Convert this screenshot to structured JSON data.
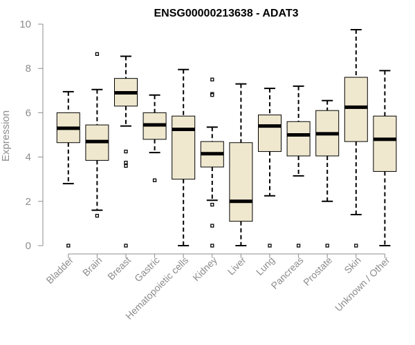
{
  "chart_data": {
    "type": "boxplot",
    "title": "ENSG00000213638 - ADAT3",
    "xlabel": "",
    "ylabel": "Expression",
    "ylim": [
      0,
      10
    ],
    "yticks": [
      0,
      2,
      4,
      6,
      8,
      10
    ],
    "categories": [
      "Bladder",
      "Brain",
      "Breast",
      "Gastric",
      "Hematopoietic cells",
      "Kidney",
      "Liver",
      "Lung",
      "Pancreas",
      "Prostate",
      "Skin",
      "Unknown / Other"
    ],
    "box_color": "#efe8cf",
    "boxes": [
      {
        "category": "Bladder",
        "min": 2.8,
        "q1": 4.65,
        "median": 5.3,
        "q3": 6.0,
        "max": 6.95,
        "outliers": [
          0
        ]
      },
      {
        "category": "Brain",
        "min": 1.6,
        "q1": 3.85,
        "median": 4.7,
        "q3": 5.45,
        "max": 7.05,
        "outliers": [
          8.65,
          1.35
        ]
      },
      {
        "category": "Breast",
        "min": 5.4,
        "q1": 6.3,
        "median": 6.9,
        "q3": 7.55,
        "max": 8.55,
        "outliers": [
          4.25,
          3.75,
          3.6,
          0
        ]
      },
      {
        "category": "Gastric",
        "min": 4.2,
        "q1": 4.8,
        "median": 5.45,
        "q3": 6.0,
        "max": 6.8,
        "outliers": [
          2.95
        ]
      },
      {
        "category": "Hematopoietic cells",
        "min": 0,
        "q1": 3.0,
        "median": 5.25,
        "q3": 5.85,
        "max": 7.95,
        "outliers": []
      },
      {
        "category": "Kidney",
        "min": 2.05,
        "q1": 3.55,
        "median": 4.15,
        "q3": 4.7,
        "max": 5.35,
        "outliers": [
          7.5,
          6.85,
          6.8,
          1.85,
          0.9,
          0
        ]
      },
      {
        "category": "Liver",
        "min": 0,
        "q1": 1.1,
        "median": 2.0,
        "q3": 4.65,
        "max": 7.3,
        "outliers": []
      },
      {
        "category": "Lung",
        "min": 2.25,
        "q1": 4.25,
        "median": 5.4,
        "q3": 5.9,
        "max": 7.1,
        "outliers": [
          0
        ]
      },
      {
        "category": "Pancreas",
        "min": 3.15,
        "q1": 4.05,
        "median": 5.0,
        "q3": 5.6,
        "max": 7.2,
        "outliers": [
          0
        ]
      },
      {
        "category": "Prostate",
        "min": 2.0,
        "q1": 4.05,
        "median": 5.05,
        "q3": 6.1,
        "max": 6.55,
        "outliers": [
          0
        ]
      },
      {
        "category": "Skin",
        "min": 1.4,
        "q1": 4.7,
        "median": 6.25,
        "q3": 7.6,
        "max": 9.75,
        "outliers": [
          0
        ]
      },
      {
        "category": "Unknown / Other",
        "min": 0,
        "q1": 3.35,
        "median": 4.8,
        "q3": 5.85,
        "max": 7.9,
        "outliers": []
      }
    ]
  }
}
